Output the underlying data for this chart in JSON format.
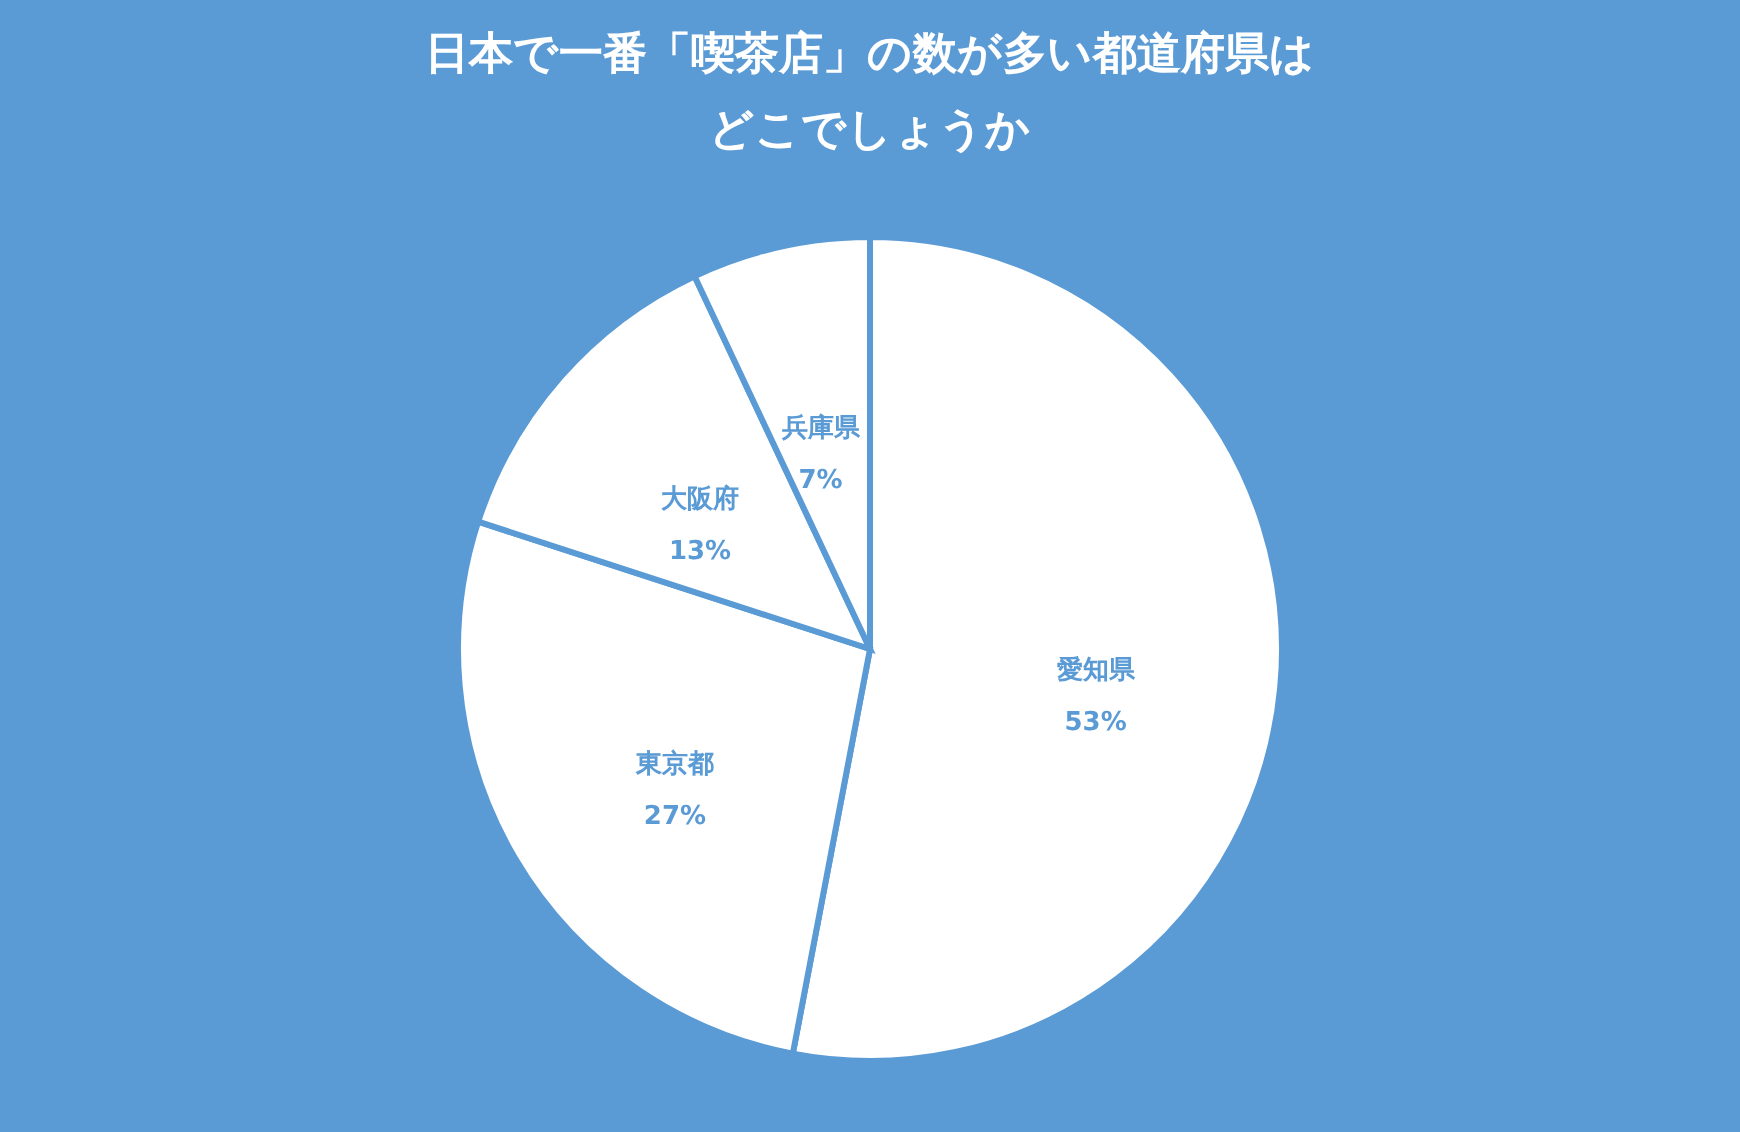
{
  "chart_data": {
    "type": "pie",
    "title": "日本で一番「喫茶店」の数が多い都道府県は",
    "subtitle": "どこでしょうか",
    "categories": [
      "愛知県",
      "東京都",
      "大阪府",
      "兵庫県"
    ],
    "values": [
      53,
      27,
      13,
      7
    ],
    "colors": [
      "#ffffff",
      "#ffffff",
      "#ffffff",
      "#ffffff"
    ],
    "value_labels": [
      "53%",
      "27%",
      "13%",
      "7%"
    ],
    "legend": false
  }
}
